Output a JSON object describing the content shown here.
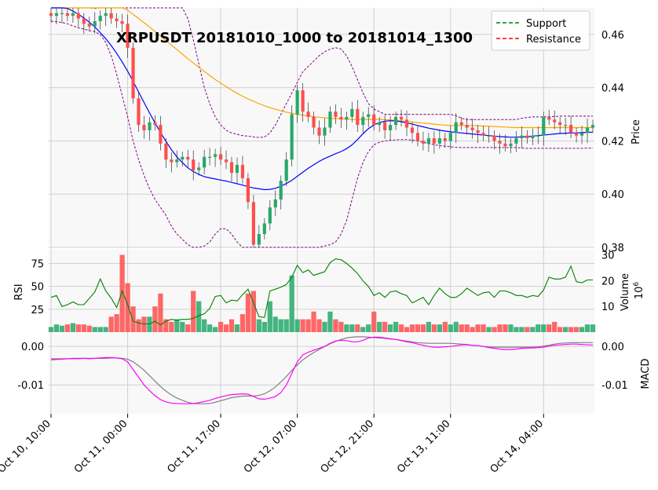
{
  "chart_data": {
    "type": "candlestick",
    "title": "XRPUSDT 20181010_1000 to 20181014_1300",
    "colors": {
      "up": "#26a86a",
      "down": "#ff4d4d",
      "sma_fast": "#0000ff",
      "sma_slow": "#ffa500",
      "bollinger": "#800080",
      "rsi": "#008000",
      "macd": "#ff00ff",
      "signal": "#808080",
      "support": "#008000",
      "resistance": "#ff0000",
      "panel_bg": "#f8f8f8",
      "grid": "#d0d0d0"
    },
    "legend": {
      "position": "top-right",
      "entries": [
        {
          "label": "Support",
          "color": "#008000"
        },
        {
          "label": "Resistance",
          "color": "#ff0000"
        }
      ]
    },
    "x_ticks": [
      "Oct 10, 10:00",
      "Oct 11, 00:00",
      "Oct 11, 17:00",
      "Oct 12, 07:00",
      "Oct 12, 21:00",
      "Oct 13, 11:00",
      "Oct 14, 04:00"
    ],
    "x_tick_index": [
      0,
      14,
      31,
      45,
      59,
      73,
      90
    ],
    "n_bars": 100,
    "price": {
      "ylabel": "Price",
      "ylim": [
        0.38,
        0.47
      ],
      "ticks": [
        "0.38",
        "0.40",
        "0.42",
        "0.44",
        "0.46"
      ],
      "tick_values": [
        0.38,
        0.4,
        0.42,
        0.44,
        0.46
      ],
      "close": [
        0.467,
        0.468,
        0.468,
        0.467,
        0.468,
        0.466,
        0.464,
        0.463,
        0.465,
        0.467,
        0.468,
        0.466,
        0.465,
        0.464,
        0.455,
        0.436,
        0.426,
        0.424,
        0.427,
        0.426,
        0.419,
        0.413,
        0.412,
        0.413,
        0.414,
        0.413,
        0.409,
        0.41,
        0.414,
        0.414,
        0.415,
        0.413,
        0.412,
        0.408,
        0.411,
        0.406,
        0.397,
        0.381,
        0.385,
        0.389,
        0.395,
        0.398,
        0.405,
        0.413,
        0.43,
        0.439,
        0.431,
        0.429,
        0.425,
        0.422,
        0.425,
        0.431,
        0.429,
        0.428,
        0.429,
        0.432,
        0.426,
        0.429,
        0.43,
        0.426,
        0.427,
        0.424,
        0.426,
        0.429,
        0.428,
        0.425,
        0.423,
        0.42,
        0.419,
        0.421,
        0.419,
        0.421,
        0.42,
        0.423,
        0.427,
        0.426,
        0.425,
        0.424,
        0.423,
        0.422,
        0.422,
        0.42,
        0.419,
        0.418,
        0.419,
        0.421,
        0.422,
        0.421,
        0.422,
        0.422,
        0.429,
        0.428,
        0.427,
        0.426,
        0.426,
        0.423,
        0.422,
        0.423,
        0.425,
        0.426
      ],
      "sma_fast": [
        0.4716,
        0.4712,
        0.4706,
        0.4698,
        0.4688,
        0.4676,
        0.4662,
        0.4646,
        0.4628,
        0.4607,
        0.4584,
        0.4558,
        0.4529,
        0.4497,
        0.4462,
        0.4424,
        0.4384,
        0.4344,
        0.4305,
        0.4268,
        0.4232,
        0.4198,
        0.4167,
        0.414,
        0.4118,
        0.4099,
        0.4085,
        0.4074,
        0.4066,
        0.4061,
        0.4057,
        0.4053,
        0.4049,
        0.4044,
        0.4039,
        0.4034,
        0.4028,
        0.4023,
        0.402,
        0.4017,
        0.4018,
        0.4022,
        0.403,
        0.404,
        0.4052,
        0.4067,
        0.4082,
        0.4097,
        0.411,
        0.4123,
        0.4134,
        0.4143,
        0.4152,
        0.416,
        0.4171,
        0.4185,
        0.4205,
        0.4227,
        0.4246,
        0.426,
        0.4269,
        0.4274,
        0.4276,
        0.4275,
        0.4272,
        0.4268,
        0.4263,
        0.4258,
        0.4253,
        0.4248,
        0.4244,
        0.424,
        0.4237,
        0.4234,
        0.4232,
        0.423,
        0.4228,
        0.4226,
        0.4224,
        0.4222,
        0.422,
        0.4218,
        0.4216,
        0.4215,
        0.4214,
        0.4214,
        0.4215,
        0.4216,
        0.4218,
        0.422,
        0.4222,
        0.4224,
        0.4226,
        0.4228,
        0.4229,
        0.423,
        0.423,
        0.4231,
        0.4232,
        0.4233
      ],
      "sma_slow": [
        0.481,
        0.4805,
        0.48,
        0.4795,
        0.479,
        0.4785,
        0.4778,
        0.477,
        0.4762,
        0.4752,
        0.4742,
        0.473,
        0.4718,
        0.4705,
        0.4691,
        0.4676,
        0.466,
        0.4644,
        0.4628,
        0.4611,
        0.4594,
        0.4577,
        0.456,
        0.4543,
        0.4526,
        0.4509,
        0.4493,
        0.4477,
        0.4461,
        0.4446,
        0.4431,
        0.4417,
        0.4404,
        0.4391,
        0.4379,
        0.4368,
        0.4358,
        0.4349,
        0.434,
        0.4332,
        0.4325,
        0.4319,
        0.4313,
        0.4308,
        0.4304,
        0.43,
        0.4297,
        0.4294,
        0.4291,
        0.4289,
        0.4287,
        0.4285,
        0.4284,
        0.4283,
        0.4282,
        0.4281,
        0.4281,
        0.4281,
        0.4281,
        0.4281,
        0.4281,
        0.428,
        0.4279,
        0.4277,
        0.4275,
        0.4273,
        0.4271,
        0.4269,
        0.4267,
        0.4265,
        0.4263,
        0.4261,
        0.4259,
        0.4258,
        0.4258,
        0.4258,
        0.4258,
        0.4258,
        0.4257,
        0.4256,
        0.4255,
        0.4254,
        0.4253,
        0.4252,
        0.4251,
        0.425,
        0.425,
        0.425,
        0.425,
        0.425,
        0.425,
        0.425,
        0.425,
        0.425,
        0.425,
        0.425,
        0.425,
        0.425,
        0.425,
        0.425
      ],
      "boll_upper": [
        0.474,
        0.4738,
        0.4735,
        0.473,
        0.4723,
        0.4715,
        0.4708,
        0.4702,
        0.4698,
        0.4705,
        0.474,
        0.48,
        0.488,
        0.496,
        0.503,
        0.507,
        0.507,
        0.504,
        0.499,
        0.493,
        0.488,
        0.483,
        0.479,
        0.476,
        0.472,
        0.466,
        0.458,
        0.449,
        0.44,
        0.434,
        0.429,
        0.426,
        0.424,
        0.423,
        0.4225,
        0.422,
        0.4218,
        0.4215,
        0.4213,
        0.4215,
        0.423,
        0.426,
        0.43,
        0.434,
        0.438,
        0.442,
        0.446,
        0.448,
        0.45,
        0.452,
        0.4535,
        0.4545,
        0.455,
        0.4545,
        0.452,
        0.448,
        0.443,
        0.438,
        0.434,
        0.432,
        0.431,
        0.43,
        0.43,
        0.43,
        0.43,
        0.43,
        0.43,
        0.43,
        0.43,
        0.43,
        0.43,
        0.43,
        0.43,
        0.43,
        0.4295,
        0.4285,
        0.428,
        0.428,
        0.428,
        0.428,
        0.428,
        0.428,
        0.428,
        0.428,
        0.428,
        0.428,
        0.4285,
        0.4288,
        0.429,
        0.429,
        0.429,
        0.429,
        0.4292,
        0.4293,
        0.4293,
        0.4293,
        0.4293,
        0.4293,
        0.4293,
        0.4293
      ],
      "boll_lower": [
        0.465,
        0.4648,
        0.4645,
        0.464,
        0.4632,
        0.4625,
        0.462,
        0.4615,
        0.461,
        0.46,
        0.457,
        0.452,
        0.445,
        0.437,
        0.429,
        0.42,
        0.413,
        0.407,
        0.402,
        0.398,
        0.395,
        0.392,
        0.388,
        0.385,
        0.383,
        0.381,
        0.38,
        0.38,
        0.3805,
        0.382,
        0.385,
        0.387,
        0.387,
        0.385,
        0.382,
        0.38,
        0.3795,
        0.379,
        0.379,
        0.379,
        0.379,
        0.3795,
        0.38,
        0.38,
        0.38,
        0.38,
        0.38,
        0.38,
        0.38,
        0.38,
        0.3805,
        0.381,
        0.382,
        0.385,
        0.39,
        0.398,
        0.406,
        0.412,
        0.416,
        0.4185,
        0.4195,
        0.42,
        0.4202,
        0.4204,
        0.4205,
        0.4205,
        0.4203,
        0.42,
        0.4195,
        0.419,
        0.4186,
        0.4182,
        0.418,
        0.4178,
        0.4176,
        0.4175,
        0.4175,
        0.4175,
        0.4175,
        0.4175,
        0.4175,
        0.4175,
        0.4175,
        0.4175,
        0.4175,
        0.4175,
        0.4173,
        0.4172,
        0.4172,
        0.4172,
        0.4172,
        0.4172,
        0.4172,
        0.4172,
        0.4172,
        0.4172,
        0.4172,
        0.4172,
        0.4173,
        0.4173
      ]
    },
    "volume": {
      "ylabel": "Volume",
      "unit": "10^6",
      "ylim": [
        0,
        32
      ],
      "ticks": [
        "10",
        "20",
        "30"
      ],
      "tick_values": [
        10,
        20,
        30
      ],
      "values": [
        2,
        3,
        2.5,
        3,
        3.5,
        3,
        3,
        2.5,
        2,
        2,
        2,
        6,
        7,
        30,
        19,
        10,
        5,
        6,
        6,
        10,
        15,
        5,
        4,
        5,
        4,
        3,
        16,
        12,
        5,
        3,
        2,
        4,
        3,
        5,
        3,
        7,
        15,
        16,
        5,
        4,
        12,
        6,
        5,
        5,
        22,
        5,
        5,
        5,
        8,
        5,
        4,
        8,
        5,
        4,
        3,
        3,
        3,
        2,
        3,
        8,
        4,
        4,
        3,
        4,
        3,
        2,
        3,
        3,
        3,
        4,
        3,
        3,
        4,
        3,
        4,
        3,
        3,
        2,
        3,
        3,
        2,
        2,
        3,
        3,
        3,
        2,
        2,
        2,
        2,
        3,
        3,
        3,
        4,
        2,
        2,
        2,
        2,
        2,
        3,
        3
      ]
    },
    "rsi": {
      "ylabel": "RSI",
      "ylim": [
        0,
        90
      ],
      "ticks": [
        "25",
        "50",
        "75"
      ],
      "tick_values": [
        25,
        50,
        75
      ],
      "values": [
        38,
        40,
        28,
        30,
        33,
        30,
        30,
        37,
        44,
        58,
        45,
        37,
        27,
        45,
        30,
        12,
        10,
        9,
        9,
        12,
        8,
        12,
        14,
        13,
        14,
        14,
        15,
        18,
        20,
        26,
        39,
        40,
        32,
        35,
        34,
        41,
        47,
        32,
        17,
        16,
        45,
        47,
        49,
        52,
        60,
        73,
        65,
        68,
        62,
        64,
        66,
        76,
        80,
        79,
        75,
        70,
        64,
        56,
        50,
        40,
        43,
        38,
        44,
        45,
        42,
        40,
        32,
        35,
        38,
        30,
        40,
        48,
        42,
        38,
        38,
        42,
        48,
        44,
        40,
        43,
        44,
        38,
        45,
        45,
        43,
        40,
        40,
        38,
        40,
        39,
        46,
        60,
        58,
        58,
        60,
        72,
        55,
        54,
        57,
        57
      ]
    },
    "macd": {
      "ylabel": "MACD",
      "ylim": [
        -0.0175,
        0.0035
      ],
      "ticks": [
        "-0.01",
        "0.00"
      ],
      "tick_values": [
        -0.01,
        0.0
      ],
      "macd": [
        -0.0035,
        -0.0034,
        -0.0033,
        -0.0032,
        -0.0031,
        -0.0031,
        -0.0031,
        -0.0032,
        -0.0031,
        -0.003,
        -0.0029,
        -0.0029,
        -0.003,
        -0.0032,
        -0.004,
        -0.006,
        -0.008,
        -0.01,
        -0.0115,
        -0.0128,
        -0.0138,
        -0.0144,
        -0.0147,
        -0.0148,
        -0.0149,
        -0.0149,
        -0.0148,
        -0.0146,
        -0.0143,
        -0.014,
        -0.0135,
        -0.0131,
        -0.0128,
        -0.0125,
        -0.0124,
        -0.0123,
        -0.0124,
        -0.013,
        -0.0136,
        -0.0137,
        -0.0134,
        -0.013,
        -0.012,
        -0.01,
        -0.007,
        -0.004,
        -0.0022,
        -0.0015,
        -0.001,
        -0.0005,
        0.0,
        0.0008,
        0.0014,
        0.0016,
        0.0015,
        0.0012,
        0.0012,
        0.0016,
        0.0022,
        0.0024,
        0.0024,
        0.0022,
        0.002,
        0.0018,
        0.0015,
        0.0012,
        0.001,
        0.0006,
        0.0003,
        0.0,
        -0.0002,
        -0.0002,
        -0.0001,
        0.0,
        0.0002,
        0.0004,
        0.0004,
        0.0003,
        0.0002,
        0.0,
        -0.0003,
        -0.0005,
        -0.0007,
        -0.0008,
        -0.0008,
        -0.0007,
        -0.0005,
        -0.0004,
        -0.0004,
        -0.0003,
        -0.0002,
        0.0001,
        0.0003,
        0.0004,
        0.0005,
        0.0006,
        0.0006,
        0.0005,
        0.0004,
        0.0004
      ],
      "signal": [
        -0.0032,
        -0.0032,
        -0.0032,
        -0.0032,
        -0.0032,
        -0.0032,
        -0.0031,
        -0.0031,
        -0.0031,
        -0.0031,
        -0.0031,
        -0.003,
        -0.003,
        -0.0031,
        -0.0033,
        -0.004,
        -0.005,
        -0.0062,
        -0.0076,
        -0.009,
        -0.0104,
        -0.0116,
        -0.0126,
        -0.0134,
        -0.014,
        -0.0145,
        -0.0148,
        -0.0149,
        -0.0149,
        -0.0148,
        -0.0145,
        -0.0141,
        -0.0137,
        -0.0133,
        -0.0131,
        -0.0129,
        -0.0129,
        -0.0129,
        -0.0127,
        -0.0123,
        -0.0115,
        -0.0105,
        -0.0092,
        -0.0078,
        -0.0062,
        -0.0048,
        -0.0035,
        -0.0025,
        -0.0016,
        -0.0008,
        0.0,
        0.0007,
        0.0013,
        0.0018,
        0.0022,
        0.0024,
        0.0025,
        0.0025,
        0.0024,
        0.0023,
        0.0022,
        0.0021,
        0.0019,
        0.0018,
        0.0016,
        0.0014,
        0.0012,
        0.001,
        0.0009,
        0.0008,
        0.0008,
        0.0008,
        0.0008,
        0.0008,
        0.0007,
        0.0006,
        0.0005,
        0.0003,
        0.0002,
        0.0,
        -0.0001,
        -0.0002,
        -0.0002,
        -0.0002,
        -0.0002,
        -0.0002,
        -0.0002,
        -0.0002,
        -0.0002,
        -0.0001,
        0.0001,
        0.0003,
        0.0006,
        0.0008,
        0.0009,
        0.001,
        0.001,
        0.001,
        0.001,
        0.001
      ]
    }
  }
}
